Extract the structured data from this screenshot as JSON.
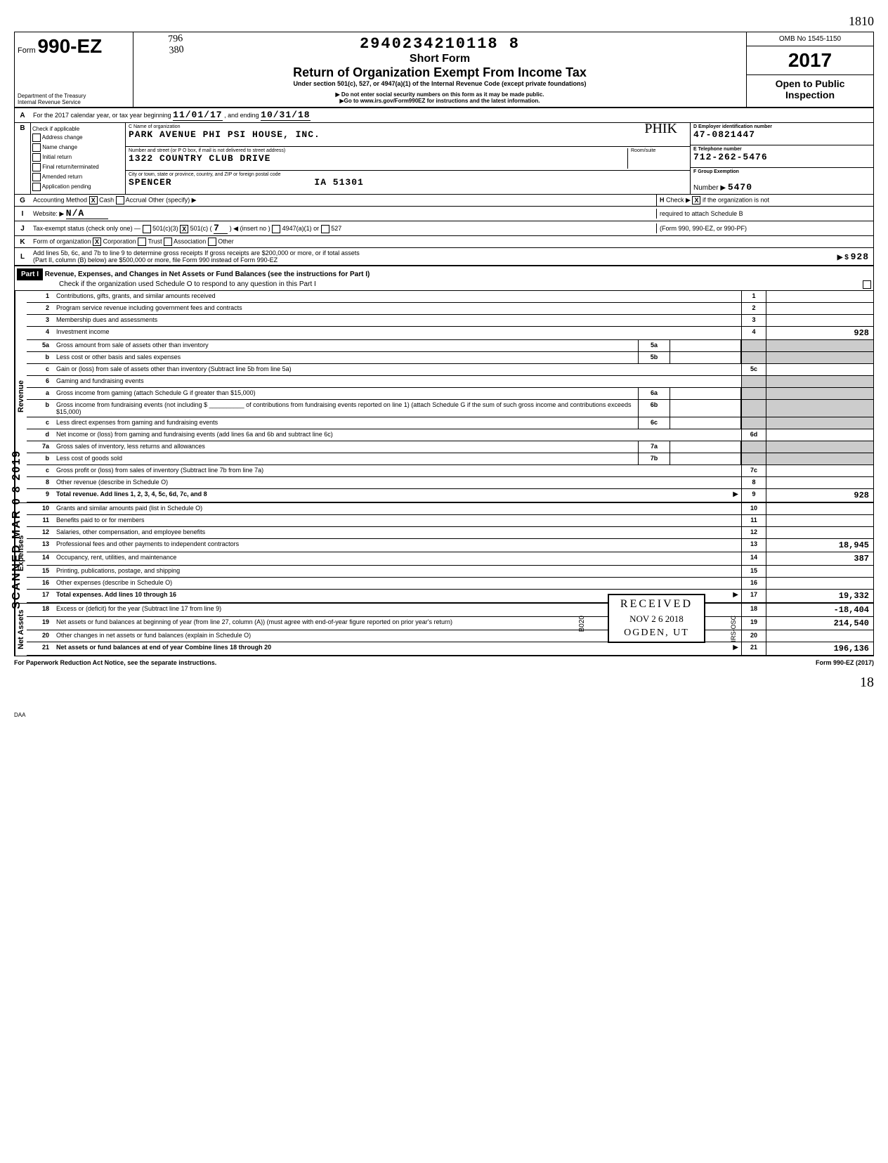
{
  "topRight": "1810",
  "stampNumber": "2940234210118  8",
  "scribble1": "796",
  "scribble2": "380",
  "header": {
    "formPrefix": "Form",
    "formNumber": "990-EZ",
    "shortForm": "Short Form",
    "title": "Return of Organization Exempt From Income Tax",
    "subtitle": "Under section 501(c), 527, or 4947(a)(1) of the Internal Revenue Code (except private foundations)",
    "warn1": "▶ Do not enter social security numbers on this form as it may be made public.",
    "warn2": "▶Go to www.irs.gov/Form990EZ for instructions and the latest information.",
    "dept": "Department of the Treasury",
    "irs": "Internal Revenue Service",
    "omb": "OMB No 1545-1150",
    "year": "2017",
    "openPublic1": "Open to Public",
    "openPublic2": "Inspection"
  },
  "lineA": {
    "label": "For the 2017 calendar year, or tax year beginning",
    "begin": "11/01/17",
    "mid": ", and ending",
    "end": "10/31/18"
  },
  "lineB": {
    "label": "Check if applicable",
    "opts": [
      "Address change",
      "Name change",
      "Initial return",
      "Final return/terminated",
      "Amended return",
      "Application pending"
    ]
  },
  "entity": {
    "nameLabel": "C Name of organization",
    "name": "PARK AVENUE PHI PSI HOUSE, INC.",
    "phik": "PHIK",
    "addrLabel": "Number and street (or P O box, if mail is not delivered to street address)",
    "roomLabel": "Room/suite",
    "addr": "1322 COUNTRY CLUB DRIVE",
    "cityLabel": "City or town, state or province, country, and ZIP or foreign postal code",
    "city": "SPENCER",
    "state": "IA 51301"
  },
  "rightEntity": {
    "dLabel": "D Employer identification number",
    "ein": "47-0821447",
    "eLabel": "E Telephone number",
    "phone": "712-262-5476",
    "fLabel": "F Group Exemption",
    "fNum": "Number ▶",
    "groupNum": "5470"
  },
  "lineG": {
    "label": "Accounting Method",
    "cash": "Cash",
    "accrual": "Accrual",
    "other": "Other (specify) ▶"
  },
  "lineH": {
    "label": "Check ▶",
    "text1": "if the organization is not",
    "text2": "required to attach Schedule B",
    "text3": "(Form 990, 990-EZ, or 990-PF)"
  },
  "lineI": {
    "label": "Website: ▶",
    "value": "N/A"
  },
  "lineJ": {
    "label": "Tax-exempt status (check only one) —",
    "opt1": "501(c)(3)",
    "opt2": "501(c) (",
    "insert": "7",
    "opt2b": ") ◀ (insert no )",
    "opt3": "4947(a)(1) or",
    "opt4": "527"
  },
  "lineK": {
    "label": "Form of organization",
    "opts": [
      "Corporation",
      "Trust",
      "Association",
      "Other"
    ]
  },
  "lineL": {
    "text1": "Add lines 5b, 6c, and 7b to line 9 to determine gross receipts If gross receipts are $200,000 or more, or if total assets",
    "text2": "(Part II, column (B) below) are $500,000 or more, file Form 990 instead of Form 990-EZ",
    "arrow": "▶ $",
    "amount": "928"
  },
  "part1": {
    "label": "Part I",
    "title": "Revenue, Expenses, and Changes in Net Assets or Fund Balances (see the instructions for Part I)",
    "sub": "Check if the organization used Schedule O to respond to any question in this Part I"
  },
  "revenue": {
    "vlabel": "Revenue",
    "lines": [
      {
        "n": "1",
        "d": "Contributions, gifts, grants, and similar amounts received",
        "bn": "1",
        "a": ""
      },
      {
        "n": "2",
        "d": "Program service revenue including government fees and contracts",
        "bn": "2",
        "a": ""
      },
      {
        "n": "3",
        "d": "Membership dues and assessments",
        "bn": "3",
        "a": ""
      },
      {
        "n": "4",
        "d": "Investment income",
        "bn": "4",
        "a": "928"
      },
      {
        "n": "5a",
        "d": "Gross amount from sale of assets other than inventory",
        "mb": "5a",
        "ma": ""
      },
      {
        "n": "b",
        "d": "Less cost or other basis and sales expenses",
        "mb": "5b",
        "ma": ""
      },
      {
        "n": "c",
        "d": "Gain or (loss) from sale of assets other than inventory (Subtract line 5b from line 5a)",
        "bn": "5c",
        "a": ""
      },
      {
        "n": "6",
        "d": "Gaming and fundraising events"
      },
      {
        "n": "a",
        "d": "Gross income from gaming (attach Schedule G if greater than $15,000)",
        "mb": "6a",
        "ma": ""
      },
      {
        "n": "b",
        "d": "Gross income from fundraising events (not including $ __________ of contributions from fundraising events reported on line 1) (attach Schedule G if the sum of such gross income and contributions exceeds $15,000)",
        "mb": "6b",
        "ma": ""
      },
      {
        "n": "c",
        "d": "Less direct expenses from gaming and fundraising events",
        "mb": "6c",
        "ma": ""
      },
      {
        "n": "d",
        "d": "Net income or (loss) from gaming and fundraising events (add lines 6a and 6b and subtract line 6c)",
        "bn": "6d",
        "a": ""
      },
      {
        "n": "7a",
        "d": "Gross sales of inventory, less returns and allowances",
        "mb": "7a",
        "ma": ""
      },
      {
        "n": "b",
        "d": "Less cost of goods sold",
        "mb": "7b",
        "ma": ""
      },
      {
        "n": "c",
        "d": "Gross profit or (loss) from sales of inventory (Subtract line 7b from line 7a)",
        "bn": "7c",
        "a": ""
      },
      {
        "n": "8",
        "d": "Other revenue (describe in Schedule O)",
        "bn": "8",
        "a": ""
      },
      {
        "n": "9",
        "d": "Total revenue. Add lines 1, 2, 3, 4, 5c, 6d, 7c, and 8",
        "bn": "9",
        "a": "928",
        "bold": true,
        "arrow": true
      }
    ]
  },
  "expenses": {
    "vlabel": "Expenses",
    "lines": [
      {
        "n": "10",
        "d": "Grants and similar amounts paid (list in Schedule O)",
        "bn": "10",
        "a": ""
      },
      {
        "n": "11",
        "d": "Benefits paid to or for members",
        "bn": "11",
        "a": ""
      },
      {
        "n": "12",
        "d": "Salaries, other compensation, and employee benefits",
        "bn": "12",
        "a": ""
      },
      {
        "n": "13",
        "d": "Professional fees and other payments to independent contractors",
        "bn": "13",
        "a": "18,945"
      },
      {
        "n": "14",
        "d": "Occupancy, rent, utilities, and maintenance",
        "bn": "14",
        "a": "387"
      },
      {
        "n": "15",
        "d": "Printing, publications, postage, and shipping",
        "bn": "15",
        "a": ""
      },
      {
        "n": "16",
        "d": "Other expenses (describe in Schedule O)",
        "bn": "16",
        "a": ""
      },
      {
        "n": "17",
        "d": "Total expenses. Add lines 10 through 16",
        "bn": "17",
        "a": "19,332",
        "bold": true,
        "arrow": true
      }
    ]
  },
  "netassets": {
    "vlabel": "Net Assets",
    "lines": [
      {
        "n": "18",
        "d": "Excess or (deficit) for the year (Subtract line 17 from line 9)",
        "bn": "18",
        "a": "-18,404"
      },
      {
        "n": "19",
        "d": "Net assets or fund balances at beginning of year (from line 27, column (A)) (must agree with end-of-year figure reported on prior year's return)",
        "bn": "19",
        "a": "214,540"
      },
      {
        "n": "20",
        "d": "Other changes in net assets or fund balances (explain in Schedule O)",
        "bn": "20",
        "a": ""
      },
      {
        "n": "21",
        "d": "Net assets or fund balances at end of year Combine lines 18 through 20",
        "bn": "21",
        "a": "196,136",
        "bold": true,
        "arrow": true
      }
    ]
  },
  "footer": {
    "left": "For Paperwork Reduction Act Notice, see the separate instructions.",
    "right": "Form 990-EZ (2017)"
  },
  "pageNum": "18",
  "daa": "DAA",
  "scanned": "SCANNED MAR 0 8 2019",
  "received": {
    "r1": "RECEIVED",
    "r2": "NOV 2 6 2018",
    "r3": "OGDEN, UT"
  },
  "b020": "B020",
  "irsosc": "IRS-OSC"
}
